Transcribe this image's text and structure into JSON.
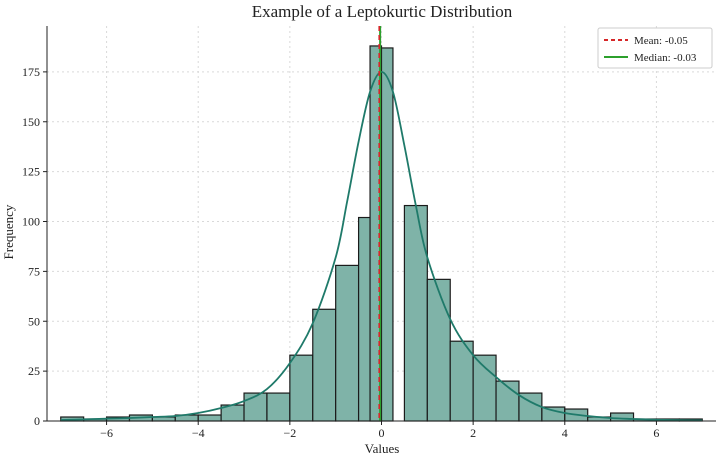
{
  "chart_data": {
    "type": "bar",
    "title": "Example of a Leptokurtic Distribution",
    "xlabel": "Values",
    "ylabel": "Frequency",
    "xlim": [
      -7.3,
      7.3
    ],
    "ylim": [
      0,
      198
    ],
    "xticks": [
      -6,
      -4,
      -2,
      0,
      2,
      4,
      6
    ],
    "yticks": [
      0,
      25,
      50,
      75,
      100,
      125,
      150,
      175
    ],
    "grid": true,
    "bar_color": "#7fb3a8",
    "edge_color": "#1b1b1b",
    "kde_color": "#1f7a6a",
    "bin_width": 0.5,
    "bins": [
      {
        "x0": -7.0,
        "count": 2
      },
      {
        "x0": -6.5,
        "count": 1
      },
      {
        "x0": -6.0,
        "count": 2
      },
      {
        "x0": -5.5,
        "count": 3
      },
      {
        "x0": -5.0,
        "count": 2
      },
      {
        "x0": -4.5,
        "count": 3
      },
      {
        "x0": -4.0,
        "count": 3
      },
      {
        "x0": -3.5,
        "count": 8
      },
      {
        "x0": -3.0,
        "count": 14
      },
      {
        "x0": -2.5,
        "count": 14
      },
      {
        "x0": -2.0,
        "count": 33
      },
      {
        "x0": -1.5,
        "count": 56
      },
      {
        "x0": -1.0,
        "count": 78
      },
      {
        "x0": -0.5,
        "count": 102
      },
      {
        "x0": -0.5,
        "count": 0
      },
      {
        "x0": 0.0,
        "count": 0
      },
      {
        "x0": 0.5,
        "count": 108
      },
      {
        "x0": 1.0,
        "count": 71
      },
      {
        "x0": 1.5,
        "count": 40
      },
      {
        "x0": 2.0,
        "count": 33
      },
      {
        "x0": 2.5,
        "count": 20
      },
      {
        "x0": 3.0,
        "count": 14
      },
      {
        "x0": 3.5,
        "count": 7
      },
      {
        "x0": 4.0,
        "count": 6
      },
      {
        "x0": 4.5,
        "count": 2
      },
      {
        "x0": 5.0,
        "count": 4
      },
      {
        "x0": 5.5,
        "count": 1
      },
      {
        "x0": 6.0,
        "count": 1
      },
      {
        "x0": 6.5,
        "count": 1
      }
    ],
    "center_bins": [
      {
        "x0": -0.25,
        "x1": 0.0,
        "count": 188
      },
      {
        "x0": 0.0,
        "x1": 0.25,
        "count": 187
      }
    ],
    "kde": {
      "x": [
        -7.0,
        -6.5,
        -6.0,
        -5.5,
        -5.0,
        -4.5,
        -4.0,
        -3.5,
        -3.0,
        -2.5,
        -2.0,
        -1.5,
        -1.0,
        -0.75,
        -0.5,
        -0.25,
        0.0,
        0.25,
        0.5,
        0.75,
        1.0,
        1.5,
        2.0,
        2.5,
        3.0,
        3.5,
        4.0,
        4.5,
        5.0,
        5.5,
        6.0,
        6.5,
        7.0
      ],
      "y": [
        0.5,
        0.8,
        1.2,
        1.5,
        2,
        2.5,
        4,
        6.5,
        10,
        16,
        29,
        49,
        82,
        110,
        140,
        165,
        175,
        165,
        138,
        108,
        82,
        51,
        33,
        22,
        13,
        7,
        4,
        2.5,
        1.5,
        1,
        0.6,
        0.4,
        0.3
      ]
    },
    "mean": -0.05,
    "median": -0.03,
    "legend": {
      "position": "top-right",
      "entries": [
        {
          "label": "Mean: -0.05",
          "color": "#d62728",
          "style": "dashed"
        },
        {
          "label": "Median: -0.03",
          "color": "#2ca02c",
          "style": "solid"
        }
      ]
    }
  }
}
